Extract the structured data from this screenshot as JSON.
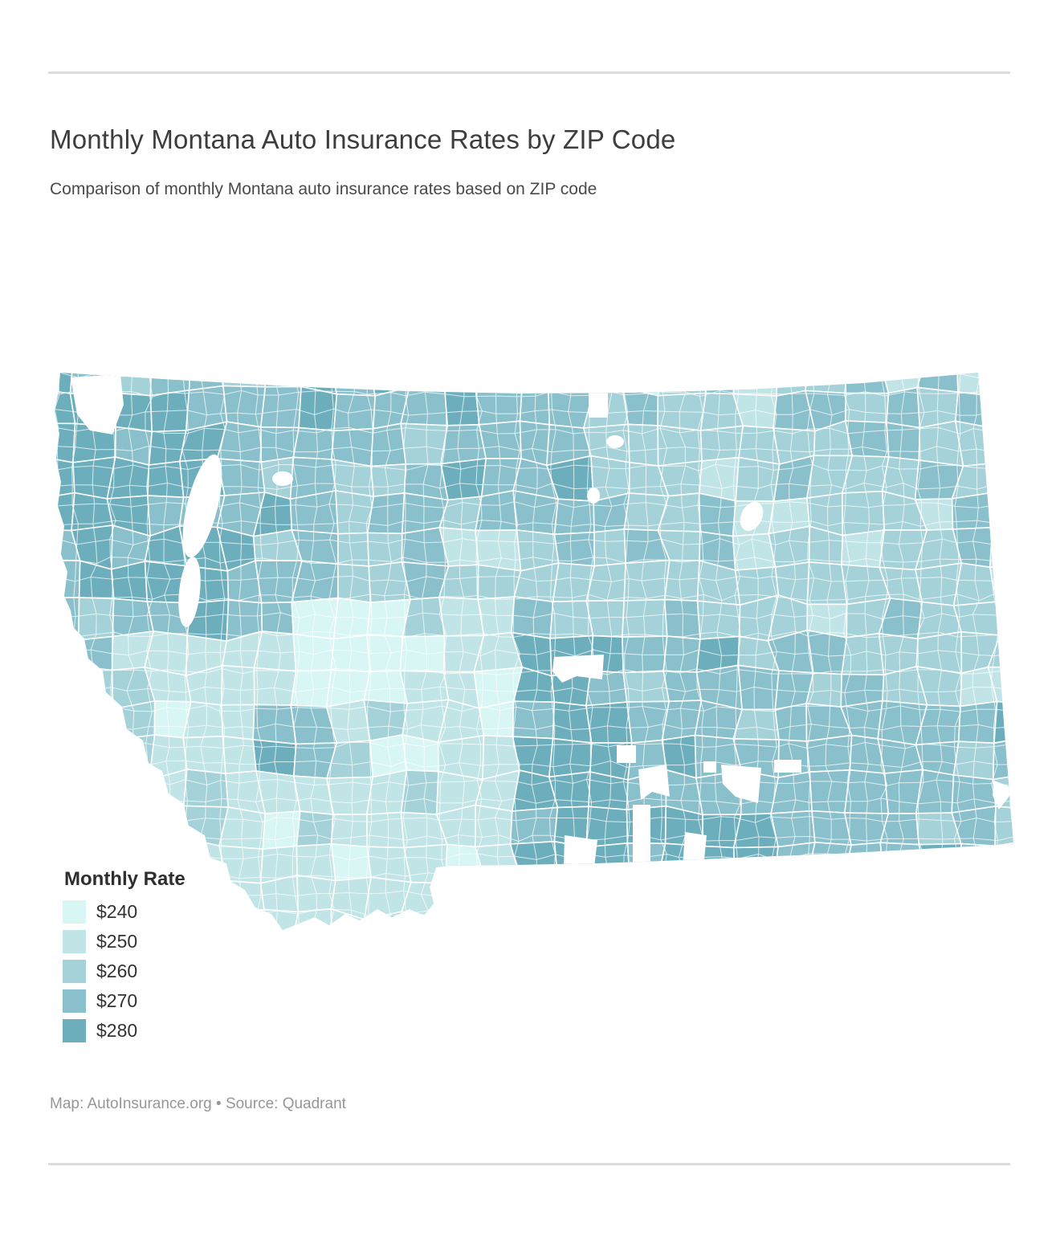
{
  "header": {
    "title": "Monthly Montana Auto Insurance Rates by ZIP Code",
    "subtitle": "Comparison of monthly Montana auto insurance rates based on ZIP code"
  },
  "legend": {
    "title": "Monthly Rate",
    "items": [
      {
        "label": "$240",
        "value": 240,
        "color": "#d7f6f4"
      },
      {
        "label": "$250",
        "value": 250,
        "color": "#c1e4e6"
      },
      {
        "label": "$260",
        "value": 260,
        "color": "#a4d2d8"
      },
      {
        "label": "$270",
        "value": 270,
        "color": "#8ac0cb"
      },
      {
        "label": "$280",
        "value": 280,
        "color": "#6caebc"
      }
    ]
  },
  "footer": {
    "text": "Map: AutoInsurance.org • Source: Quadrant"
  },
  "chart_data": {
    "type": "choropleth",
    "region": "Montana, USA",
    "geography_unit": "ZIP code",
    "measure": "Monthly auto insurance rate (USD)",
    "legend_title": "Monthly Rate",
    "classes": [
      240,
      250,
      260,
      270,
      280
    ],
    "class_labels": [
      "$240",
      "$250",
      "$260",
      "$270",
      "$280"
    ],
    "class_colors": [
      "#d7f6f4",
      "#c1e4e6",
      "#a4d2d8",
      "#8ac0cb",
      "#6caebc"
    ],
    "visible_pattern": {
      "lowest": "pale $240–$250 zone in west-central / southwest Montana",
      "highest": "dark $270–$280 zones in the northwest corner and south-central Montana",
      "east": "mostly mid-range $260 with $270 patches",
      "no_data": "white gaps (e.g. Glacier Park area, Flathead Lake, south-central reservations)"
    },
    "border_color": "#ffffff"
  },
  "page": {
    "background": "#ffffff",
    "divider_color": "#dcdcdc"
  }
}
